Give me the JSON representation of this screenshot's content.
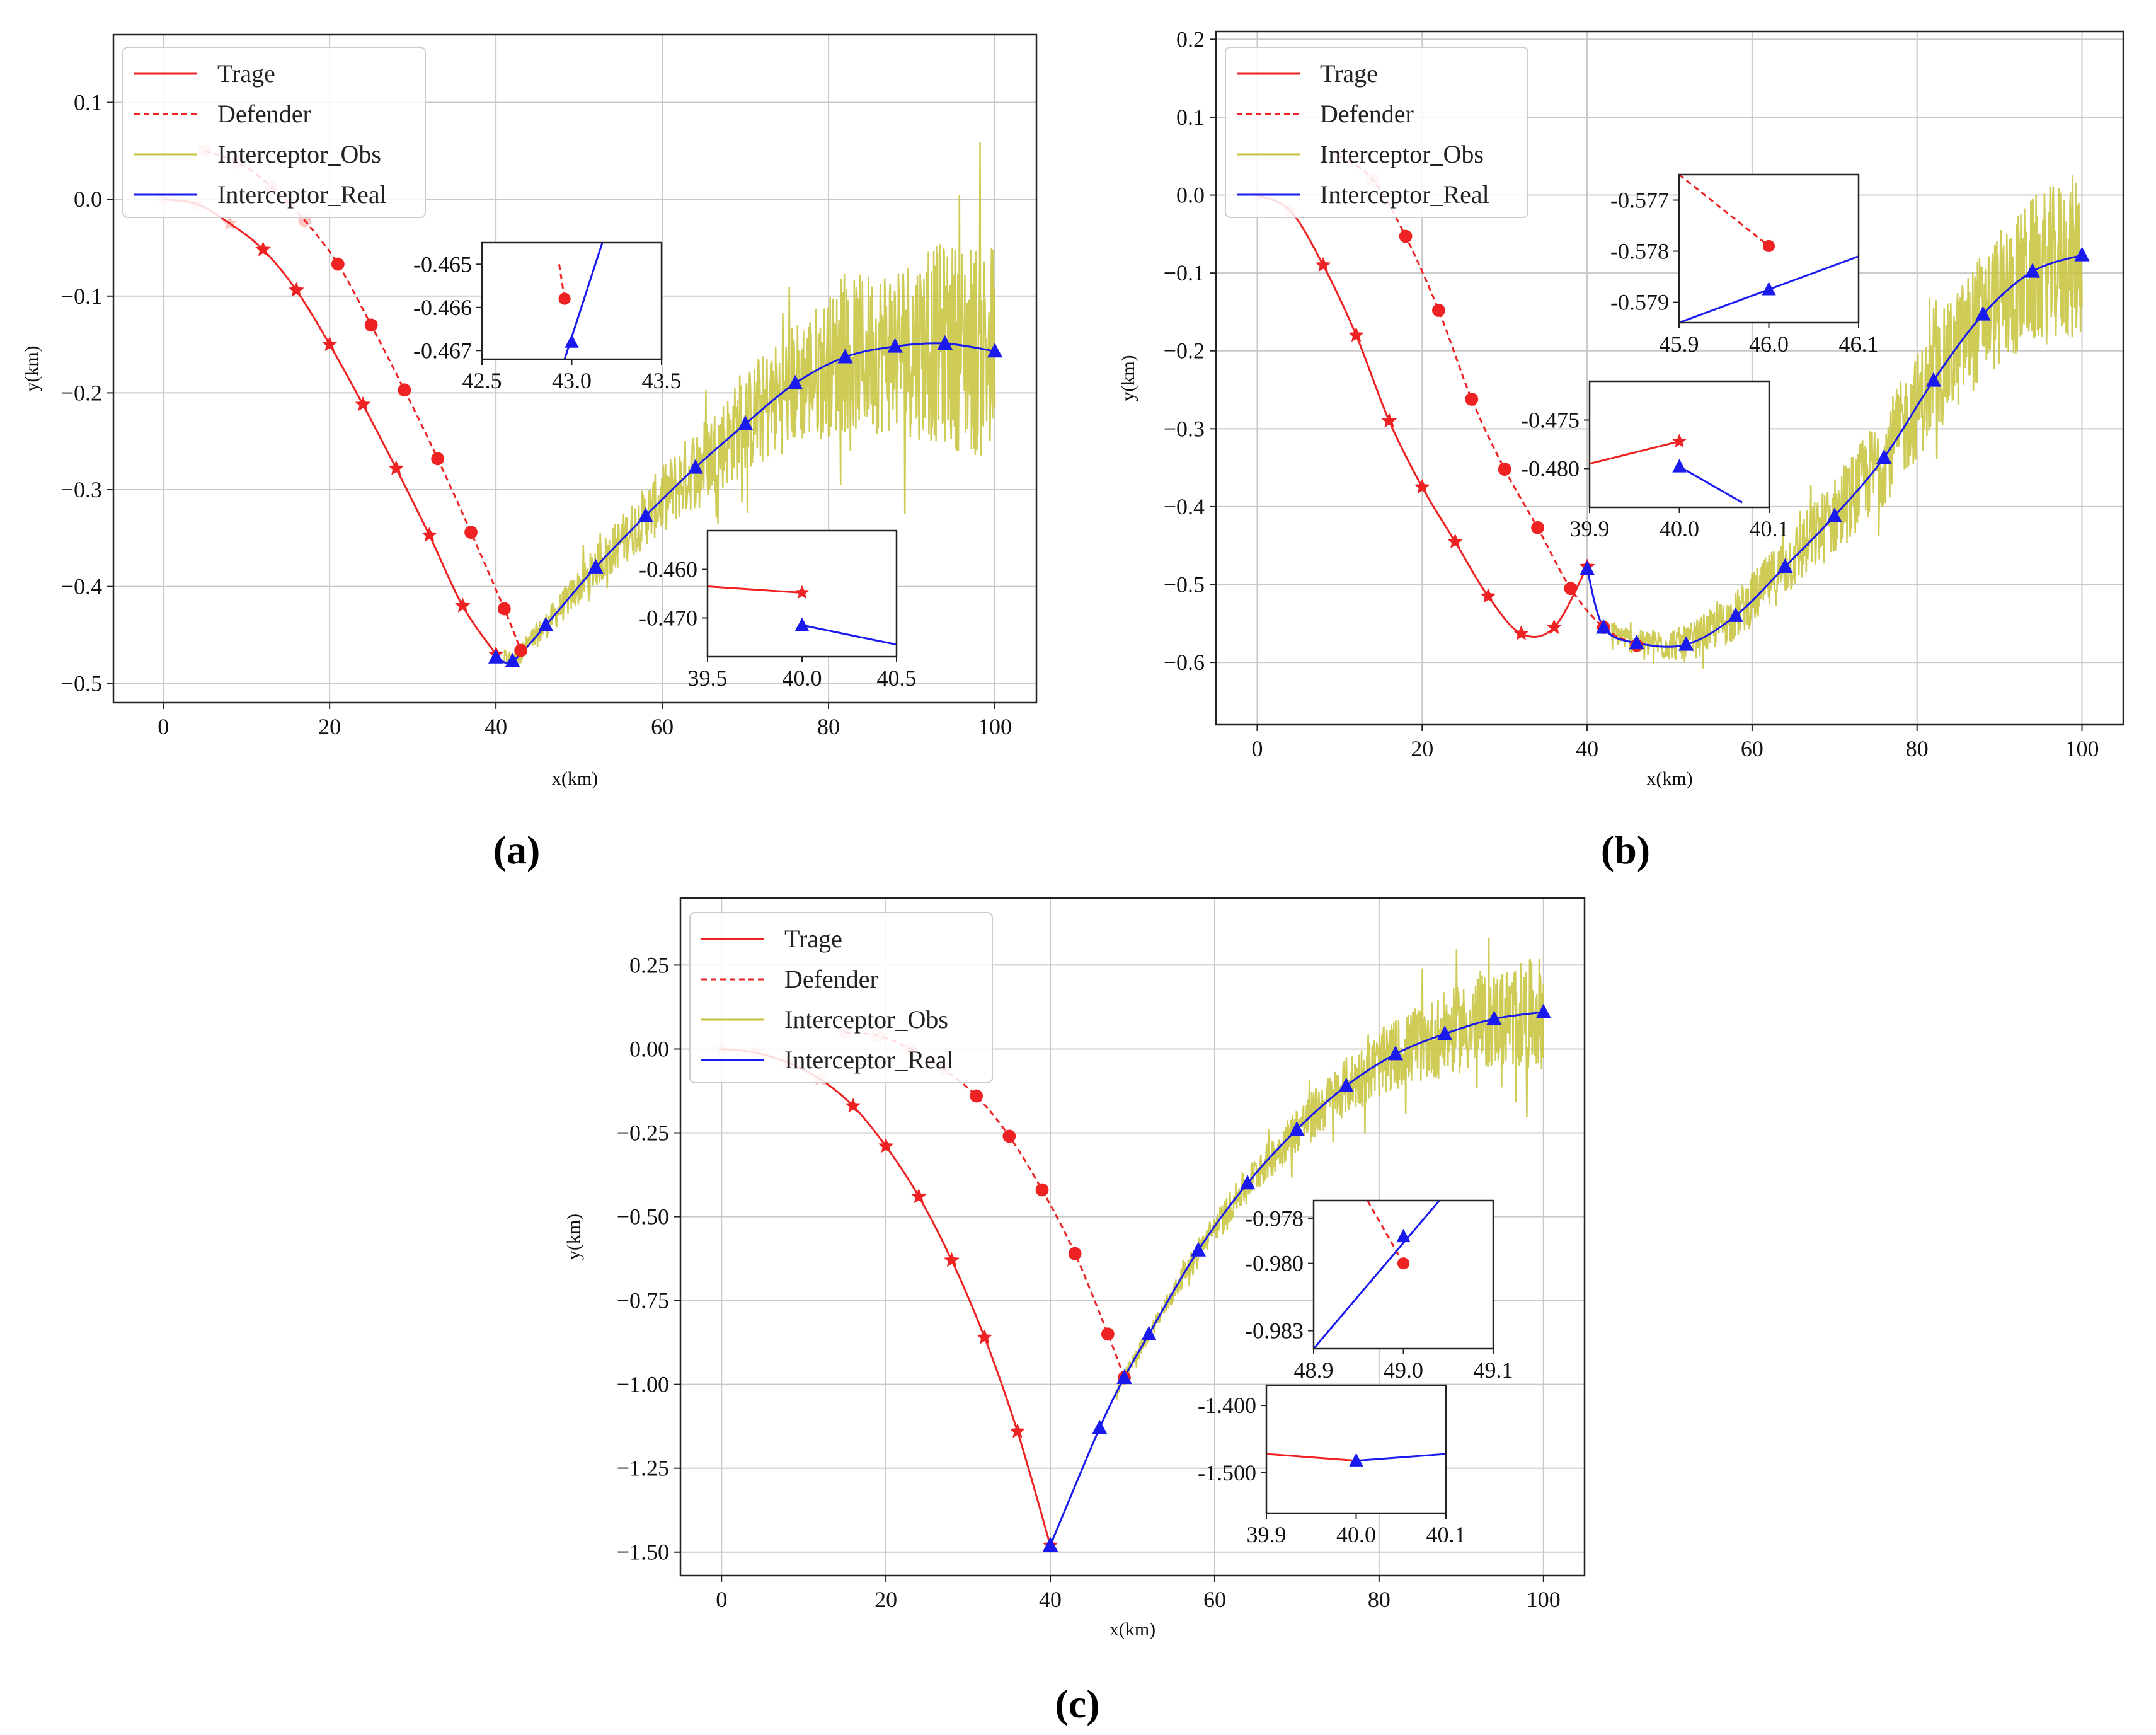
{
  "figure": {
    "panel_labels": [
      "(a)",
      "(b)",
      "(c)"
    ],
    "legend": [
      "Trage",
      "Defender",
      "Interceptor_Obs",
      "Interceptor_Real"
    ],
    "colors": {
      "trage": "#ee2222",
      "defender": "#ee2222",
      "obs": "#c7c23a",
      "real": "#1a1aee",
      "grid": "#c8c8c8"
    }
  },
  "chart_data": [
    {
      "id": "a",
      "type": "line",
      "xlabel": "x(km)",
      "ylabel": "y(km)",
      "xlim": [
        -6,
        105
      ],
      "ylim": [
        -0.52,
        0.17
      ],
      "xticks": [
        0,
        20,
        40,
        60,
        80,
        100
      ],
      "xtick_labels": [
        "0",
        "20",
        "40",
        "60",
        "80",
        "100"
      ],
      "yticks": [
        0.1,
        0.0,
        -0.1,
        -0.2,
        -0.3,
        -0.4,
        -0.5
      ],
      "ytick_labels": [
        "0.1",
        "0.0",
        "−0.1",
        "−0.2",
        "−0.3",
        "−0.4",
        "−0.5"
      ],
      "obs_noise": {
        "x_start": 41,
        "x_end": 100,
        "amp_start": 0.01,
        "amp_end": 0.12
      },
      "series": [
        {
          "name": "Trage",
          "x": [
            0,
            4,
            8,
            12,
            16,
            20,
            24,
            28,
            32,
            36,
            40
          ],
          "y": [
            0,
            -0.005,
            -0.025,
            -0.052,
            -0.094,
            -0.15,
            -0.212,
            -0.278,
            -0.347,
            -0.42,
            -0.47
          ]
        },
        {
          "name": "Defender",
          "x": [
            5,
            9,
            13,
            17,
            21,
            25,
            29,
            33,
            37,
            41,
            43
          ],
          "y": [
            0.05,
            0.038,
            0.013,
            -0.022,
            -0.067,
            -0.13,
            -0.197,
            -0.268,
            -0.344,
            -0.423,
            -0.466
          ]
        },
        {
          "name": "Interceptor_Real",
          "x": [
            40,
            42,
            46,
            52,
            58,
            64,
            70,
            76,
            82,
            88,
            94,
            100
          ],
          "y": [
            -0.473,
            -0.477,
            -0.44,
            -0.38,
            -0.327,
            -0.277,
            -0.232,
            -0.19,
            -0.163,
            -0.152,
            -0.149,
            -0.157
          ]
        }
      ],
      "insets": [
        {
          "xlim": [
            42.5,
            43.5
          ],
          "ylim": [
            -0.4672,
            -0.4645
          ],
          "xticks": [
            42.5,
            43.0,
            43.5
          ],
          "xtick_labels": [
            "42.5",
            "43.0",
            "43.5"
          ],
          "yticks": [
            -0.465,
            -0.466,
            -0.467
          ],
          "ytick_labels": [
            "-0.465",
            "-0.466",
            "-0.467"
          ],
          "lines": [
            {
              "name": "Defender",
              "x": [
                42.93,
                42.96
              ],
              "y": [
                -0.465,
                -0.4658
              ]
            },
            {
              "name": "Interceptor_Real",
              "x": [
                42.96,
                43.17
              ],
              "y": [
                -0.4672,
                -0.4645
              ]
            }
          ],
          "points": [
            {
              "name": "Defender",
              "x": 42.96,
              "y": -0.4658
            },
            {
              "name": "Interceptor_Real",
              "x": 43.0,
              "y": -0.4668
            }
          ]
        },
        {
          "xlim": [
            39.5,
            40.5
          ],
          "ylim": [
            -0.478,
            -0.452
          ],
          "xticks": [
            39.5,
            40.0,
            40.5
          ],
          "xtick_labels": [
            "39.5",
            "40.0",
            "40.5"
          ],
          "yticks": [
            -0.46,
            -0.47
          ],
          "ytick_labels": [
            "-0.460",
            "-0.470"
          ],
          "lines": [
            {
              "name": "Trage",
              "x": [
                39.5,
                40.0
              ],
              "y": [
                -0.4635,
                -0.4648
              ]
            },
            {
              "name": "Interceptor_Real",
              "x": [
                40.0,
                40.5
              ],
              "y": [
                -0.4715,
                -0.4755
              ]
            }
          ],
          "points": [
            {
              "name": "Trage",
              "x": 40.0,
              "y": -0.4648
            },
            {
              "name": "Interceptor_Real",
              "x": 40.0,
              "y": -0.4715
            }
          ]
        }
      ]
    },
    {
      "id": "b",
      "type": "line",
      "xlabel": "x(km)",
      "ylabel": "y(km)",
      "xlim": [
        -5,
        105
      ],
      "ylim": [
        -0.68,
        0.21
      ],
      "xticks": [
        0,
        20,
        40,
        60,
        80,
        100
      ],
      "xtick_labels": [
        "0",
        "20",
        "40",
        "60",
        "80",
        "100"
      ],
      "yticks": [
        0.2,
        0.1,
        0.0,
        -0.1,
        -0.2,
        -0.3,
        -0.4,
        -0.5,
        -0.6
      ],
      "ytick_labels": [
        "0.2",
        "0.1",
        "0.0",
        "−0.1",
        "−0.2",
        "−0.3",
        "−0.4",
        "−0.5",
        "−0.6"
      ],
      "obs_noise": {
        "x_start": 43,
        "x_end": 100,
        "amp_start": 0.015,
        "amp_end": 0.11
      },
      "series": [
        {
          "name": "Trage",
          "x": [
            0,
            4,
            8,
            12,
            16,
            20,
            24,
            28,
            32,
            36,
            40
          ],
          "y": [
            0,
            -0.02,
            -0.09,
            -0.18,
            -0.29,
            -0.375,
            -0.445,
            -0.515,
            -0.563,
            -0.555,
            -0.477
          ]
        },
        {
          "name": "Defender",
          "x": [
            10,
            14,
            18,
            22,
            26,
            30,
            34,
            38,
            42,
            46
          ],
          "y": [
            0.05,
            0.02,
            -0.053,
            -0.148,
            -0.262,
            -0.352,
            -0.427,
            -0.505,
            -0.555,
            -0.578
          ]
        },
        {
          "name": "Interceptor_Real",
          "x": [
            40,
            42,
            46,
            52,
            58,
            64,
            70,
            76,
            82,
            88,
            94,
            100
          ],
          "y": [
            -0.48,
            -0.555,
            -0.575,
            -0.577,
            -0.54,
            -0.477,
            -0.412,
            -0.337,
            -0.238,
            -0.153,
            -0.098,
            -0.077
          ]
        }
      ],
      "insets": [
        {
          "xlim": [
            45.9,
            46.1
          ],
          "ylim": [
            -0.5794,
            -0.5765
          ],
          "xticks": [
            45.9,
            46.0,
            46.1
          ],
          "xtick_labels": [
            "45.9",
            "46.0",
            "46.1"
          ],
          "yticks": [
            -0.577,
            -0.578,
            -0.579
          ],
          "ytick_labels": [
            "-0.577",
            "-0.578",
            "-0.579"
          ],
          "lines": [
            {
              "name": "Defender",
              "x": [
                45.9,
                46.0
              ],
              "y": [
                -0.5765,
                -0.5779
              ]
            },
            {
              "name": "Interceptor_Real",
              "x": [
                45.9,
                46.1
              ],
              "y": [
                -0.5794,
                -0.5781
              ]
            }
          ],
          "points": [
            {
              "name": "Defender",
              "x": 46.0,
              "y": -0.5779
            },
            {
              "name": "Interceptor_Real",
              "x": 46.0,
              "y": -0.57875
            }
          ]
        },
        {
          "xlim": [
            39.9,
            40.1
          ],
          "ylim": [
            -0.484,
            -0.471
          ],
          "xticks": [
            39.9,
            40.0,
            40.1
          ],
          "xtick_labels": [
            "39.9",
            "40.0",
            "40.1"
          ],
          "yticks": [
            -0.475,
            -0.48
          ],
          "ytick_labels": [
            "-0.475",
            "-0.480"
          ],
          "lines": [
            {
              "name": "Trage",
              "x": [
                39.9,
                40.0
              ],
              "y": [
                -0.4795,
                -0.4772
              ]
            },
            {
              "name": "Interceptor_Real",
              "x": [
                40.0,
                40.07
              ],
              "y": [
                -0.4798,
                -0.4835
              ]
            }
          ],
          "points": [
            {
              "name": "Trage",
              "x": 40.0,
              "y": -0.4772
            },
            {
              "name": "Interceptor_Real",
              "x": 40.0,
              "y": -0.4798
            }
          ]
        }
      ]
    },
    {
      "id": "c",
      "type": "line",
      "xlabel": "x(km)",
      "ylabel": "y(km)",
      "xlim": [
        -5,
        105
      ],
      "ylim": [
        -1.57,
        0.45
      ],
      "xticks": [
        0,
        20,
        40,
        60,
        80,
        100
      ],
      "xtick_labels": [
        "0",
        "20",
        "40",
        "60",
        "80",
        "100"
      ],
      "yticks": [
        0.25,
        0.0,
        -0.25,
        -0.5,
        -0.75,
        -1.0,
        -1.25,
        -1.5
      ],
      "ytick_labels": [
        "0.25",
        "0.00",
        "−0.25",
        "−0.50",
        "−0.75",
        "−1.00",
        "−1.25",
        "−1.50"
      ],
      "obs_noise": {
        "x_start": 48,
        "x_end": 100,
        "amp_start": 0.02,
        "amp_end": 0.17
      },
      "series": [
        {
          "name": "Trage",
          "x": [
            0,
            4,
            8,
            12,
            16,
            20,
            24,
            28,
            32,
            36,
            40
          ],
          "y": [
            0,
            -0.01,
            -0.04,
            -0.09,
            -0.17,
            -0.29,
            -0.44,
            -0.63,
            -0.86,
            -1.14,
            -1.48
          ]
        },
        {
          "name": "Defender",
          "x": [
            15,
            19,
            23,
            27,
            31,
            35,
            39,
            43,
            47,
            49
          ],
          "y": [
            0.05,
            0.04,
            0.0,
            -0.06,
            -0.14,
            -0.26,
            -0.42,
            -0.61,
            -0.85,
            -0.98
          ]
        },
        {
          "name": "Interceptor_Real",
          "x": [
            40,
            46,
            49,
            52,
            58,
            64,
            70,
            76,
            82,
            88,
            94,
            100
          ],
          "y": [
            -1.48,
            -1.13,
            -0.98,
            -0.85,
            -0.6,
            -0.4,
            -0.24,
            -0.11,
            -0.015,
            0.045,
            0.09,
            0.11
          ]
        }
      ],
      "insets": [
        {
          "xlim": [
            48.9,
            49.1
          ],
          "ylim": [
            -0.9838,
            -0.9772
          ],
          "xticks": [
            48.9,
            49.0,
            49.1
          ],
          "xtick_labels": [
            "48.9",
            "49.0",
            "49.1"
          ],
          "yticks": [
            -0.978,
            -0.98,
            -0.983
          ],
          "ytick_labels": [
            "-0.978",
            "-0.980",
            "-0.983"
          ],
          "lines": [
            {
              "name": "Defender",
              "x": [
                48.96,
                49.0
              ],
              "y": [
                -0.9772,
                -0.98
              ]
            },
            {
              "name": "Interceptor_Real",
              "x": [
                48.9,
                49.04
              ],
              "y": [
                -0.9838,
                -0.9772
              ]
            }
          ],
          "points": [
            {
              "name": "Defender",
              "x": 49.0,
              "y": -0.98
            },
            {
              "name": "Interceptor_Real",
              "x": 49.0,
              "y": -0.9788
            }
          ]
        },
        {
          "xlim": [
            39.9,
            40.1
          ],
          "ylim": [
            -1.56,
            -1.37
          ],
          "xticks": [
            39.9,
            40.0,
            40.1
          ],
          "xtick_labels": [
            "39.9",
            "40.0",
            "40.1"
          ],
          "yticks": [
            -1.4,
            -1.5
          ],
          "ytick_labels": [
            "-1.400",
            "-1.500"
          ],
          "lines": [
            {
              "name": "Trage",
              "x": [
                39.9,
                40.0
              ],
              "y": [
                -1.472,
                -1.482
              ]
            },
            {
              "name": "Interceptor_Real",
              "x": [
                40.0,
                40.1
              ],
              "y": [
                -1.482,
                -1.472
              ]
            }
          ],
          "points": [
            {
              "name": "Interceptor_Real",
              "x": 40.0,
              "y": -1.482
            }
          ]
        }
      ]
    }
  ]
}
